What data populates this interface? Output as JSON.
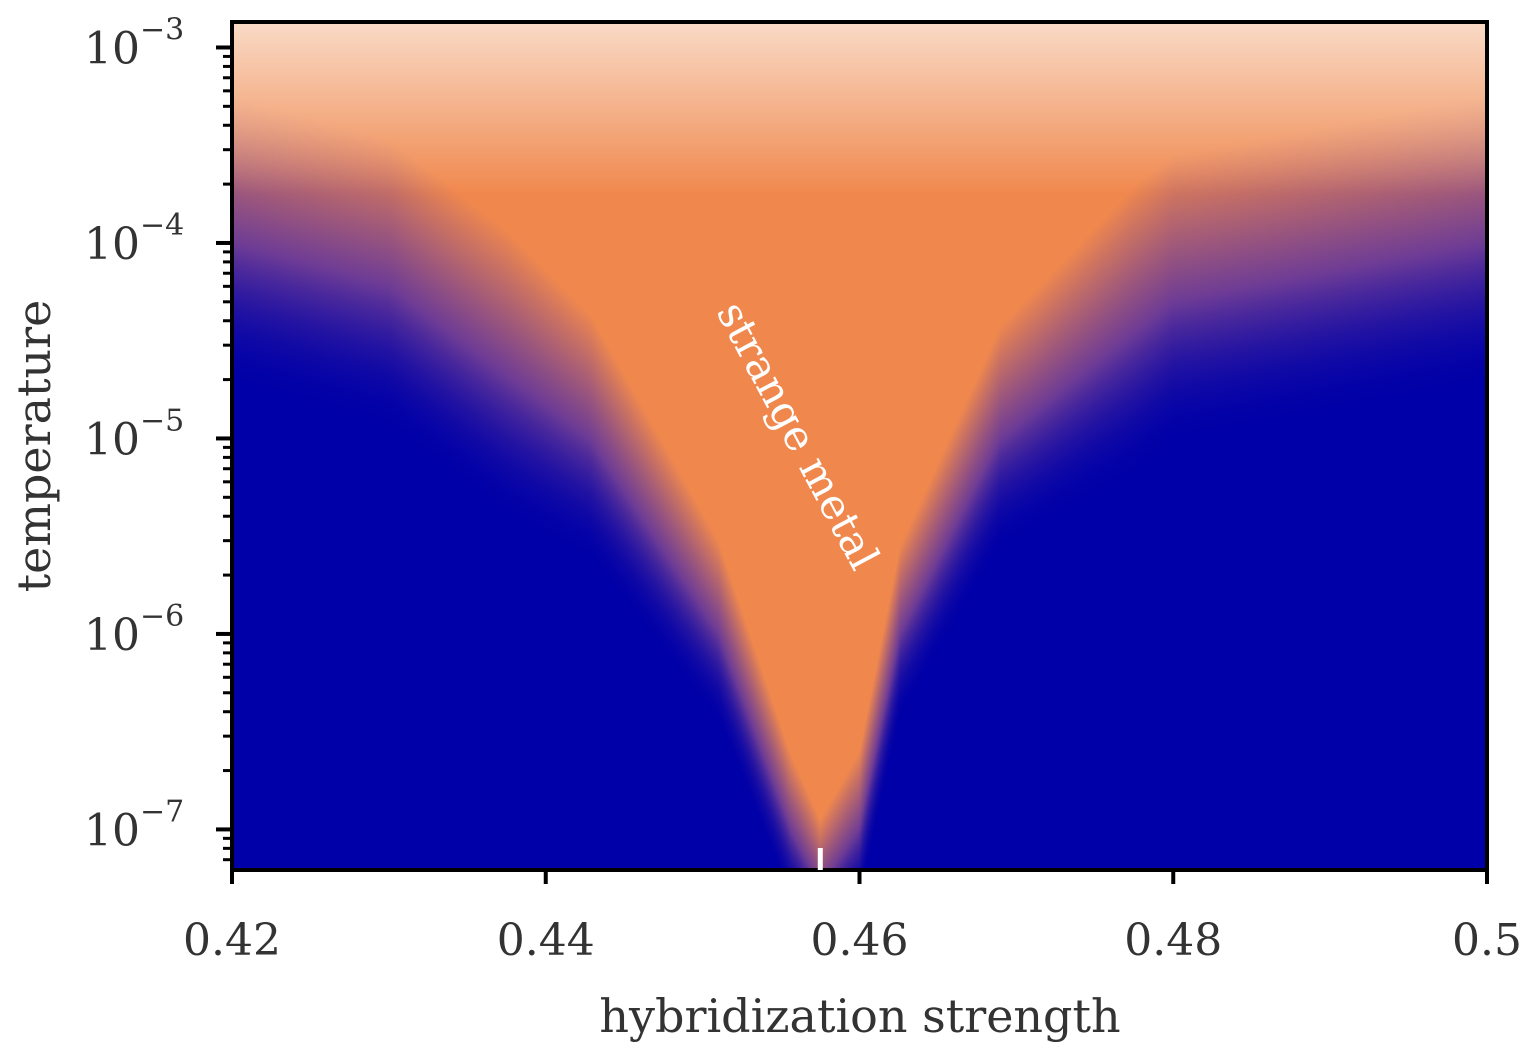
{
  "chart_data": {
    "type": "heatmap",
    "xlabel": "hybridization strength",
    "ylabel": "temperature",
    "xlim": [
      0.42,
      0.5
    ],
    "ylim": [
      6.2e-08,
      0.00135
    ],
    "yscale": "log",
    "grid": false,
    "xticks": [
      {
        "value": 0.42,
        "label": "0.42"
      },
      {
        "value": 0.44,
        "label": "0.44"
      },
      {
        "value": 0.46,
        "label": "0.46"
      },
      {
        "value": 0.48,
        "label": "0.48"
      },
      {
        "value": 0.5,
        "label": "0.5"
      }
    ],
    "yticks": [
      {
        "value": 0.001,
        "base": "10",
        "exp": "−3"
      },
      {
        "value": 0.0001,
        "base": "10",
        "exp": "−4"
      },
      {
        "value": 1e-05,
        "base": "10",
        "exp": "−5"
      },
      {
        "value": 1e-06,
        "base": "10",
        "exp": "−6"
      },
      {
        "value": 1e-07,
        "base": "10",
        "exp": "−7"
      }
    ],
    "crossover": {
      "x": [
        0.42,
        0.43,
        0.4428,
        0.451,
        0.4556,
        0.4575,
        0.46,
        0.4626,
        0.469,
        0.48,
        0.5
      ],
      "y": [
        0.0001,
        6e-05,
        1e-05,
        1e-06,
        1e-07,
        5e-08,
        1e-07,
        1e-06,
        1e-05,
        5e-05,
        0.0001
      ]
    },
    "critical_marker_x": 0.4575,
    "annotation": "strange metal",
    "colormap": {
      "low": "#0000a8",
      "mid": "#f0884e",
      "high": "#f9dcc9"
    }
  }
}
